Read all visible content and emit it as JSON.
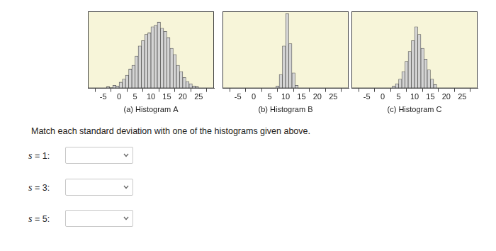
{
  "chart_data": [
    {
      "type": "histogram",
      "title": "(a) Histogram A",
      "bins": [
        -4,
        -3,
        -2,
        -1,
        0,
        1,
        2,
        3,
        4,
        5,
        6,
        7,
        8,
        9,
        10,
        11,
        12,
        13,
        14,
        15,
        16,
        17,
        18,
        19,
        20,
        21,
        22,
        23,
        24,
        25
      ],
      "values": [
        2,
        1,
        4,
        3,
        8,
        12,
        17,
        25,
        30,
        42,
        55,
        62,
        70,
        72,
        80,
        82,
        86,
        78,
        74,
        66,
        52,
        44,
        30,
        22,
        14,
        9,
        6,
        3,
        2
      ],
      "color": "#d4d4d4",
      "xlim": [
        -7,
        27
      ],
      "xticks": [
        -5,
        0,
        5,
        10,
        15,
        20,
        25
      ],
      "ylim": [
        0,
        100
      ],
      "grid": false,
      "tick_labels": "x"
    },
    {
      "type": "histogram",
      "title": "(b) Histogram B",
      "bins": [
        7,
        8,
        9,
        10,
        11,
        12,
        13,
        14
      ],
      "values": [
        3,
        18,
        55,
        97,
        58,
        20,
        4
      ],
      "color": "#d4d4d4",
      "xlim": [
        -7,
        27
      ],
      "xticks": [
        -5,
        0,
        5,
        10,
        15,
        20,
        25
      ],
      "ylim": [
        0,
        100
      ],
      "grid": false,
      "tick_labels": "x"
    },
    {
      "type": "histogram",
      "title": "(c) Histogram C",
      "bins": [
        3,
        4,
        5,
        6,
        7,
        8,
        9,
        10,
        11,
        12,
        13,
        14,
        15,
        16,
        17
      ],
      "values": [
        3,
        6,
        12,
        22,
        35,
        48,
        62,
        80,
        70,
        52,
        38,
        24,
        12,
        5
      ],
      "color": "#d4d4d4",
      "xlim": [
        -7,
        27
      ],
      "xticks": [
        -5,
        0,
        5,
        10,
        15,
        20,
        25
      ],
      "ylim": [
        0,
        100
      ],
      "grid": false,
      "tick_labels": "x"
    }
  ],
  "question": "Match each standard deviation with one of the histograms given above.",
  "answers": [
    {
      "label": "s = 1:"
    },
    {
      "label": "s = 3:"
    },
    {
      "label": "s = 5:"
    }
  ]
}
